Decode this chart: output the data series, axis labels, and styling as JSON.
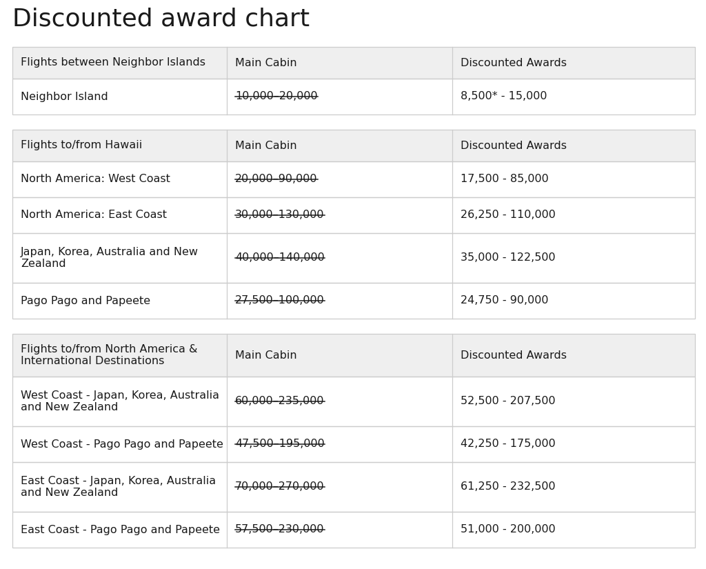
{
  "title": "Discounted award chart",
  "title_fontsize": 26,
  "bg_color": "#ffffff",
  "header_bg": "#efefef",
  "row_bg": "#ffffff",
  "border_color": "#cccccc",
  "text_color": "#1a1a1a",
  "gap_color": "#ffffff",
  "sections": [
    {
      "header": [
        "Flights between Neighbor Islands",
        "Main Cabin",
        "Discounted Awards"
      ],
      "rows": [
        [
          "Neighbor Island",
          "10,000–20,000",
          "8,500* - 15,000",
          true
        ]
      ]
    },
    {
      "header": [
        "Flights to/from Hawaii",
        "Main Cabin",
        "Discounted Awards"
      ],
      "rows": [
        [
          "North America: West Coast",
          "20,000–90,000",
          "17,500 - 85,000",
          true
        ],
        [
          "North America: East Coast",
          "30,000–130,000",
          "26,250 - 110,000",
          true
        ],
        [
          "Japan, Korea, Australia and New\nZealand",
          "40,000–140,000",
          "35,000 - 122,500",
          true
        ],
        [
          "Pago Pago and Papeete",
          "27,500–100,000",
          "24,750 - 90,000",
          true
        ]
      ]
    },
    {
      "header": [
        "Flights to/from North America &\nInternational Destinations",
        "Main Cabin",
        "Discounted Awards"
      ],
      "rows": [
        [
          "West Coast - Japan, Korea, Australia\nand New Zealand",
          "60,000–235,000",
          "52,500 - 207,500",
          true
        ],
        [
          "West Coast - Pago Pago and Papeete",
          "47,500–195,000",
          "42,250 - 175,000",
          true
        ],
        [
          "East Coast - Japan, Korea, Australia\nand New Zealand",
          "70,000–270,000",
          "61,250 - 232,500",
          true
        ],
        [
          "East Coast - Pago Pago and Papeete",
          "57,500–230,000",
          "51,000 - 200,000",
          true
        ]
      ]
    }
  ]
}
